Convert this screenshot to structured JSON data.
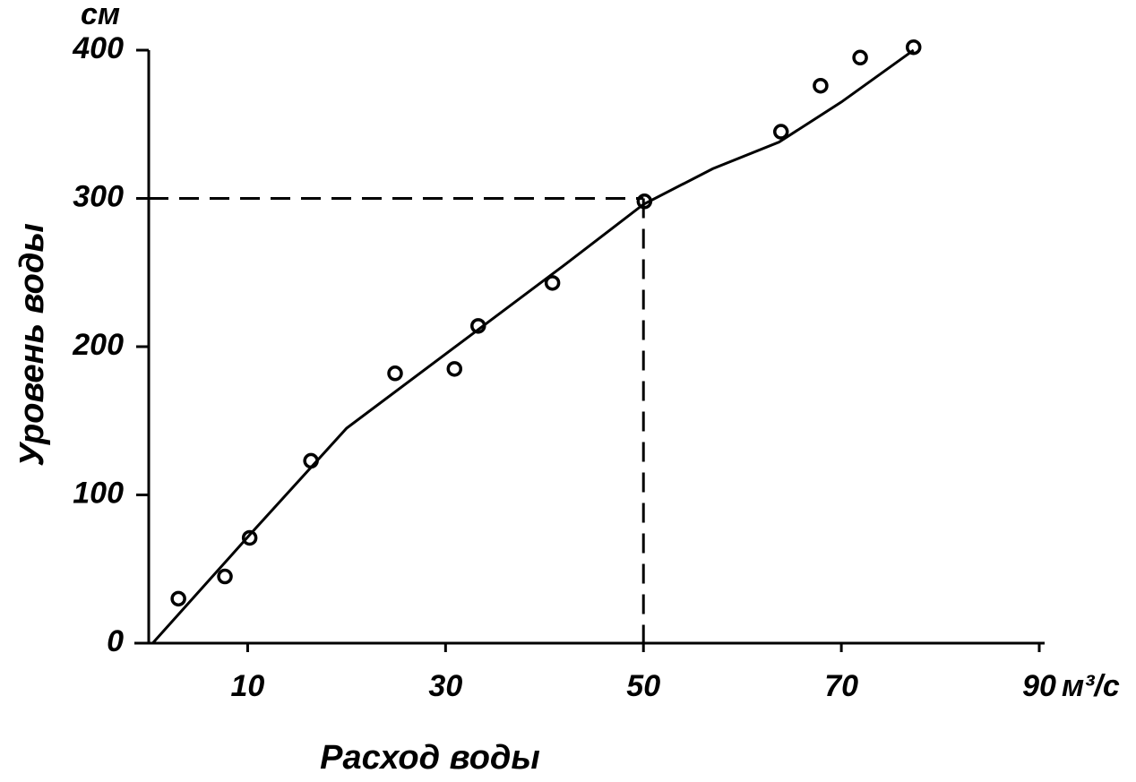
{
  "chart_data": {
    "type": "scatter",
    "x_label": "Расход воды",
    "y_label": "Уровень воды",
    "x_unit": "м³/с",
    "y_unit": "см",
    "xlim": [
      0,
      90
    ],
    "ylim": [
      0,
      400
    ],
    "xticks": [
      10,
      30,
      50,
      70,
      90
    ],
    "yticks": [
      0,
      100,
      200,
      300,
      400
    ],
    "reference_lines": {
      "x": 50,
      "y": 300
    },
    "series": [
      {
        "type": "scatter",
        "color": "#000000",
        "x": [
          3.0,
          7.7,
          10.2,
          16.4,
          24.9,
          30.9,
          33.3,
          40.8,
          50.1,
          63.9,
          67.9,
          71.9,
          77.3
        ],
        "values": [
          30,
          45,
          71,
          123,
          182,
          185,
          214,
          243,
          298,
          345,
          376,
          395,
          402
        ]
      },
      {
        "type": "line",
        "color": "#000000",
        "x": [
          0.4,
          10.2,
          20,
          33,
          42,
          50,
          57,
          63.7,
          70,
          77.3
        ],
        "values": [
          0,
          73,
          145,
          210,
          255,
          296,
          320,
          338,
          365,
          400
        ]
      }
    ]
  }
}
